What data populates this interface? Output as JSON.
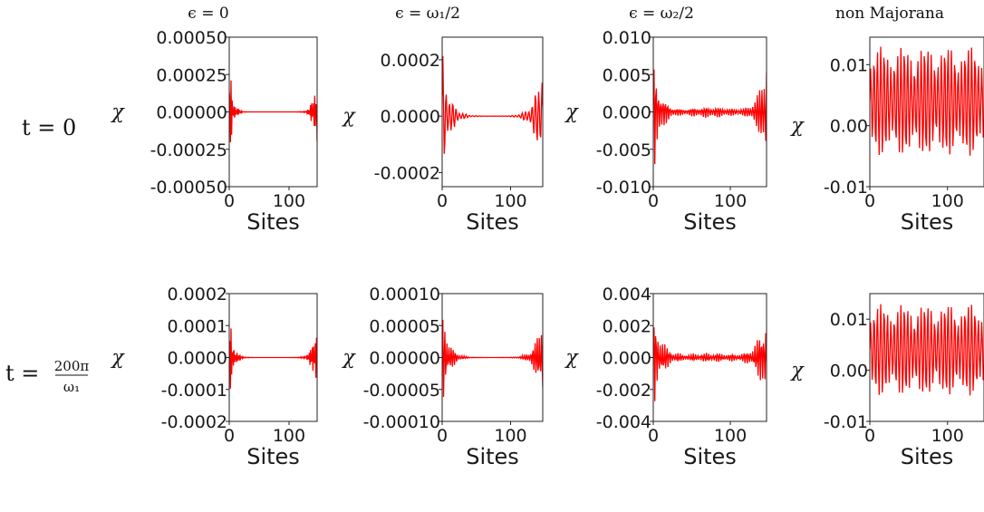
{
  "col_titles": [
    "ϵ = 0",
    "ϵ = ω₁/2",
    "ϵ = ω₂/2",
    "non Majorana"
  ],
  "row_labels": [
    {
      "lhs": "t = 0"
    },
    {
      "lhs": "t =",
      "num": "200π",
      "den": "ω₁"
    }
  ],
  "style": {
    "line_color": "#ff0000"
  },
  "chart_data": [
    {
      "type": "line",
      "row": 0,
      "col": 0,
      "title": "ϵ = 0",
      "xlabel": "Sites",
      "ylabel": "χ",
      "xlim": [
        0,
        147
      ],
      "ylim": [
        -0.0005,
        0.0005
      ],
      "xticks": [
        {
          "v": 0,
          "label": "0"
        },
        {
          "v": 100,
          "label": "100"
        }
      ],
      "yticks": [
        {
          "v": 0.0005,
          "label": "0.00050"
        },
        {
          "v": 0.00025,
          "label": "0.00025"
        },
        {
          "v": 0,
          "label": "0.00000"
        },
        {
          "v": -0.00025,
          "label": "-0.00025"
        },
        {
          "v": -0.0005,
          "label": "-0.00050"
        }
      ],
      "signal": {
        "n": 148,
        "pattern": "edge",
        "amp": 0.00046,
        "decay": 5,
        "freq": 2.6
      }
    },
    {
      "type": "line",
      "row": 0,
      "col": 1,
      "title": "ϵ = ω₁/2",
      "xlabel": "Sites",
      "ylabel": "χ",
      "xlim": [
        0,
        147
      ],
      "ylim": [
        -0.00025,
        0.00028
      ],
      "xticks": [
        {
          "v": 0,
          "label": "0"
        },
        {
          "v": 100,
          "label": "100"
        }
      ],
      "yticks": [
        {
          "v": 0.0002,
          "label": "0.0002"
        },
        {
          "v": 0,
          "label": "0.0000"
        },
        {
          "v": -0.0002,
          "label": "-0.0002"
        }
      ],
      "signal": {
        "n": 148,
        "pattern": "edge",
        "amp": 0.00024,
        "decay": 10,
        "freq": 1.3
      }
    },
    {
      "type": "line",
      "row": 0,
      "col": 2,
      "title": "ϵ = ω₂/2",
      "xlabel": "Sites",
      "ylabel": "χ",
      "xlim": [
        0,
        147
      ],
      "ylim": [
        -0.01,
        0.01
      ],
      "xticks": [
        {
          "v": 0,
          "label": "0"
        },
        {
          "v": 100,
          "label": "100"
        }
      ],
      "yticks": [
        {
          "v": 0.01,
          "label": "0.010"
        },
        {
          "v": 0.005,
          "label": "0.005"
        },
        {
          "v": 0,
          "label": "0.000"
        },
        {
          "v": -0.005,
          "label": "-0.005"
        },
        {
          "v": -0.01,
          "label": "-0.010"
        }
      ],
      "signal": {
        "n": 148,
        "pattern": "edge",
        "amp": 0.0095,
        "decay": 9,
        "freq": 2.1,
        "floor": 0.0008
      }
    },
    {
      "type": "line",
      "row": 0,
      "col": 3,
      "title": "non Majorana",
      "xlabel": "Sites",
      "ylabel": "χ",
      "xlim": [
        0,
        147
      ],
      "ylim": [
        -0.01,
        0.0145
      ],
      "xticks": [
        {
          "v": 0,
          "label": "0"
        },
        {
          "v": 100,
          "label": "100"
        }
      ],
      "yticks": [
        {
          "v": 0.01,
          "label": "0.01"
        },
        {
          "v": 0,
          "label": "0.00"
        },
        {
          "v": -0.01,
          "label": "-0.01"
        }
      ],
      "signal": {
        "n": 148,
        "pattern": "bulk",
        "offset": 0.004,
        "amp": 0.009,
        "freq": 1.45
      }
    },
    {
      "type": "line",
      "row": 1,
      "col": 0,
      "title": "ϵ = 0",
      "xlabel": "Sites",
      "ylabel": "χ",
      "xlim": [
        0,
        147
      ],
      "ylim": [
        -0.0002,
        0.0002
      ],
      "xticks": [
        {
          "v": 0,
          "label": "0"
        },
        {
          "v": 100,
          "label": "100"
        }
      ],
      "yticks": [
        {
          "v": 0.0002,
          "label": "0.0002"
        },
        {
          "v": 0.0001,
          "label": "0.0001"
        },
        {
          "v": 0,
          "label": "0.0000"
        },
        {
          "v": -0.0001,
          "label": "-0.0001"
        },
        {
          "v": -0.0002,
          "label": "-0.0002"
        }
      ],
      "signal": {
        "n": 148,
        "pattern": "edge",
        "amp": 0.000175,
        "decay": 6,
        "freq": 2.5
      }
    },
    {
      "type": "line",
      "row": 1,
      "col": 1,
      "title": "ϵ = ω₁/2",
      "xlabel": "Sites",
      "ylabel": "χ",
      "xlim": [
        0,
        147
      ],
      "ylim": [
        -0.0001,
        0.0001
      ],
      "xticks": [
        {
          "v": 0,
          "label": "0"
        },
        {
          "v": 100,
          "label": "100"
        }
      ],
      "yticks": [
        {
          "v": 0.0001,
          "label": "0.00010"
        },
        {
          "v": 5e-05,
          "label": "0.00005"
        },
        {
          "v": 0,
          "label": "0.00000"
        },
        {
          "v": -5e-05,
          "label": "-0.00005"
        },
        {
          "v": -0.0001,
          "label": "-0.00010"
        }
      ],
      "signal": {
        "n": 148,
        "pattern": "edge",
        "amp": 9e-05,
        "decay": 9,
        "freq": 2.0
      }
    },
    {
      "type": "line",
      "row": 1,
      "col": 2,
      "title": "ϵ = ω₂/2",
      "xlabel": "Sites",
      "ylabel": "χ",
      "xlim": [
        0,
        147
      ],
      "ylim": [
        -0.004,
        0.004
      ],
      "xticks": [
        {
          "v": 0,
          "label": "0"
        },
        {
          "v": 100,
          "label": "100"
        }
      ],
      "yticks": [
        {
          "v": 0.004,
          "label": "0.004"
        },
        {
          "v": 0.002,
          "label": "0.002"
        },
        {
          "v": 0,
          "label": "0.000"
        },
        {
          "v": -0.002,
          "label": "-0.002"
        },
        {
          "v": -0.004,
          "label": "-0.004"
        }
      ],
      "signal": {
        "n": 148,
        "pattern": "edge",
        "amp": 0.0035,
        "decay": 11,
        "freq": 2.2,
        "floor": 0.0003
      }
    },
    {
      "type": "line",
      "row": 1,
      "col": 3,
      "title": "non Majorana",
      "xlabel": "Sites",
      "ylabel": "χ",
      "xlim": [
        0,
        147
      ],
      "ylim": [
        -0.01,
        0.015
      ],
      "xticks": [
        {
          "v": 0,
          "label": "0"
        },
        {
          "v": 100,
          "label": "100"
        }
      ],
      "yticks": [
        {
          "v": 0.01,
          "label": "0.01"
        },
        {
          "v": 0,
          "label": "0.00"
        },
        {
          "v": -0.01,
          "label": "-0.01"
        }
      ],
      "signal": {
        "n": 148,
        "pattern": "bulk",
        "offset": 0.004,
        "amp": 0.009,
        "freq": 1.45
      }
    }
  ]
}
